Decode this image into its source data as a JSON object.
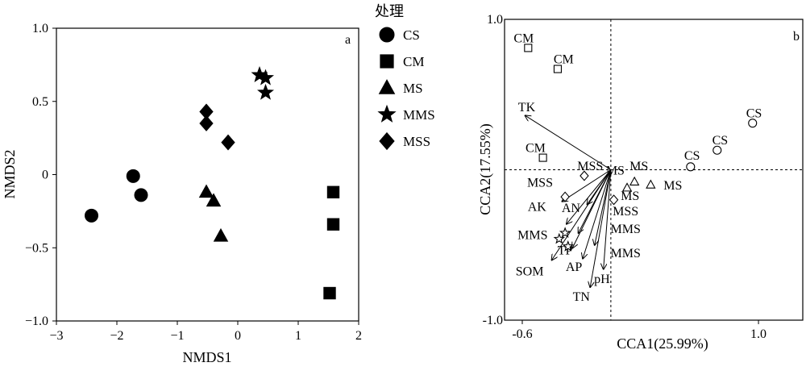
{
  "chart_data": [
    {
      "type": "scatter",
      "panel_label": "a",
      "xlabel": "NMDS1",
      "ylabel": "NMDS2",
      "xlim": [
        -3,
        2
      ],
      "ylim": [
        -1.0,
        1.0
      ],
      "xticks": [
        "−3",
        "−2",
        "−1",
        "0",
        "1",
        "2"
      ],
      "yticks": [
        "−1.0",
        "−0.5",
        "0",
        "0.5",
        "1.0"
      ],
      "legend_title": "处理",
      "series": [
        {
          "name": "CS",
          "marker": "circle",
          "points": [
            [
              -2.42,
              -0.28
            ],
            [
              -1.73,
              -0.01
            ],
            [
              -1.6,
              -0.14
            ]
          ]
        },
        {
          "name": "CM",
          "marker": "square",
          "points": [
            [
              1.58,
              -0.12
            ],
            [
              1.58,
              -0.34
            ],
            [
              1.52,
              -0.81
            ]
          ]
        },
        {
          "name": "MS",
          "marker": "triangle",
          "points": [
            [
              -0.52,
              -0.12
            ],
            [
              -0.4,
              -0.18
            ],
            [
              -0.28,
              -0.42
            ]
          ]
        },
        {
          "name": "MMS",
          "marker": "star",
          "points": [
            [
              0.36,
              0.68
            ],
            [
              0.46,
              0.66
            ],
            [
              0.46,
              0.56
            ]
          ]
        },
        {
          "name": "MSS",
          "marker": "diamond",
          "points": [
            [
              -0.52,
              0.43
            ],
            [
              -0.52,
              0.35
            ],
            [
              -0.16,
              0.22
            ]
          ]
        }
      ]
    },
    {
      "type": "scatter",
      "panel_label": "b",
      "xlabel": "CCA1(25.99%)",
      "ylabel": "CCA2(17.55%)",
      "xlim": [
        -0.72,
        1.3
      ],
      "ylim": [
        -1.0,
        1.0
      ],
      "xticks": [
        "-0.6",
        "1.0"
      ],
      "yticks": [
        "-1.0",
        "1.0"
      ],
      "samples": [
        {
          "label": "CM",
          "marker": "open-square",
          "x": -0.56,
          "y": 0.81,
          "lx": -0.59,
          "ly": 0.88
        },
        {
          "label": "CM",
          "marker": "open-square",
          "x": -0.36,
          "y": 0.67,
          "lx": -0.32,
          "ly": 0.74
        },
        {
          "label": "CM",
          "marker": "open-square",
          "x": -0.46,
          "y": 0.08,
          "lx": -0.51,
          "ly": 0.15
        },
        {
          "label": "CS",
          "marker": "open-circle",
          "x": 0.96,
          "y": 0.31,
          "lx": 0.97,
          "ly": 0.38
        },
        {
          "label": "CS",
          "marker": "open-circle",
          "x": 0.72,
          "y": 0.13,
          "lx": 0.74,
          "ly": 0.2
        },
        {
          "label": "CS",
          "marker": "open-circle",
          "x": 0.54,
          "y": 0.02,
          "lx": 0.55,
          "ly": 0.1
        },
        {
          "label": "MS",
          "marker": "open-triangle",
          "x": 0.11,
          "y": -0.12,
          "lx": 0.19,
          "ly": 0.03
        },
        {
          "label": "MS",
          "marker": "open-triangle",
          "x": 0.16,
          "y": -0.08,
          "lx": 0.13,
          "ly": -0.17
        },
        {
          "label": "MS",
          "marker": "open-triangle",
          "x": 0.27,
          "y": -0.1,
          "lx": 0.42,
          "ly": -0.1
        },
        {
          "label": "MSS",
          "marker": "open-diamond",
          "x": -0.18,
          "y": -0.04,
          "lx": -0.14,
          "ly": 0.03
        },
        {
          "label": "MSS",
          "marker": "open-diamond",
          "x": -0.31,
          "y": -0.18,
          "lx": -0.48,
          "ly": -0.08
        },
        {
          "label": "MSS",
          "marker": "open-diamond",
          "x": 0.02,
          "y": -0.2,
          "lx": 0.1,
          "ly": -0.27
        },
        {
          "label": "MMS",
          "marker": "open-star",
          "x": -0.35,
          "y": -0.46,
          "lx": -0.53,
          "ly": -0.43
        },
        {
          "label": "MMS",
          "marker": "open-star",
          "x": -0.31,
          "y": -0.42,
          "lx": 0.1,
          "ly": -0.39
        },
        {
          "label": "MMS",
          "marker": "open-star",
          "x": -0.29,
          "y": -0.51,
          "lx": 0.1,
          "ly": -0.55
        }
      ],
      "vectors": [
        {
          "label": "TK",
          "x": -0.58,
          "y": 0.36,
          "lx": -0.57,
          "ly": 0.42
        },
        {
          "label": "MS",
          "x": 0.0,
          "y": 0.0,
          "lx": 0.03,
          "ly": 0.0
        },
        {
          "label": "AK",
          "x": -0.33,
          "y": -0.21,
          "lx": -0.5,
          "ly": -0.24
        },
        {
          "label": "AN",
          "x": -0.16,
          "y": -0.23,
          "lx": -0.27,
          "ly": -0.25
        },
        {
          "label": "TP",
          "x": -0.26,
          "y": -0.52,
          "lx": -0.31,
          "ly": -0.53
        },
        {
          "label": "SOM",
          "x": -0.4,
          "y": -0.6,
          "lx": -0.55,
          "ly": -0.67
        },
        {
          "label": "AP",
          "x": -0.19,
          "y": -0.59,
          "lx": -0.25,
          "ly": -0.64
        },
        {
          "label": "pH",
          "x": -0.05,
          "y": -0.66,
          "lx": -0.06,
          "ly": -0.72
        },
        {
          "label": "TN",
          "x": -0.14,
          "y": -0.78,
          "lx": -0.2,
          "ly": -0.84
        },
        {
          "label": "",
          "x": -0.3,
          "y": -0.36
        },
        {
          "label": "",
          "x": -0.22,
          "y": -0.42
        },
        {
          "label": "",
          "x": -0.11,
          "y": -0.5
        }
      ]
    }
  ]
}
